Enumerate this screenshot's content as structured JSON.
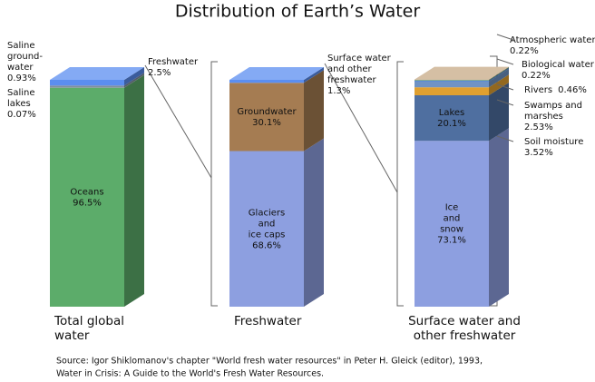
{
  "chart_data": {
    "type": "stacked-bar-3d",
    "title": "Distribution of Earth’s Water",
    "source": [
      "Source: Igor Shiklomanov's chapter \"World fresh water resources\" in Peter H. Gleick (editor), 1993,",
      "Water in Crisis: A Guide to the World's Fresh Water Resources."
    ],
    "ylim": [
      0,
      100
    ],
    "bars": [
      {
        "label": [
          "Total global",
          "water"
        ],
        "segments": [
          {
            "name": [
              "Oceans"
            ],
            "value": 96.5,
            "value_label": "96.5%",
            "color": "#5cac6a",
            "label_side": "inside"
          },
          {
            "name": [
              "Saline",
              "lakes"
            ],
            "value": 0.07,
            "value_label": "0.07%",
            "color": "#8a9a8a",
            "label_side": "left"
          },
          {
            "name": [
              "Saline",
              "ground-",
              "water"
            ],
            "value": 0.93,
            "value_label": "0.93%",
            "color": "#7f8fa0",
            "label_side": "left"
          },
          {
            "name": [
              "Freshwater"
            ],
            "value": 2.5,
            "value_label": "2.5%",
            "color": "#5b8ef0",
            "label_side": "right"
          }
        ]
      },
      {
        "label": [
          "Freshwater"
        ],
        "segments": [
          {
            "name": [
              "Glaciers",
              "and",
              "ice caps"
            ],
            "value": 68.6,
            "value_label": "68.6%",
            "color": "#8d9fe0",
            "label_side": "inside"
          },
          {
            "name": [
              "Groundwater"
            ],
            "value": 30.1,
            "value_label": "30.1%",
            "color": "#a57c52",
            "label_side": "inside"
          },
          {
            "name": [
              "Surface water",
              "and other",
              "freshwater"
            ],
            "value": 1.3,
            "value_label": "1.3%",
            "color": "#5b8ef0",
            "label_side": "right"
          }
        ]
      },
      {
        "label": [
          "Surface water and",
          "other freshwater"
        ],
        "segments": [
          {
            "name": [
              "Ice",
              "and",
              "snow"
            ],
            "value": 73.1,
            "value_label": "73.1%",
            "color": "#8d9fe0",
            "label_side": "inside"
          },
          {
            "name": [
              "Lakes"
            ],
            "value": 20.1,
            "value_label": "20.1%",
            "color": "#4f6fa0",
            "label_side": "inside"
          },
          {
            "name": [
              "Soil moisture"
            ],
            "value": 3.52,
            "value_label": "3.52%",
            "color": "#e0a030",
            "label_side": "right"
          },
          {
            "name": [
              "Swamps and",
              "marshes"
            ],
            "value": 2.53,
            "value_label": "2.53%",
            "color": "#6f93c4",
            "label_side": "right"
          },
          {
            "name": [
              "Rivers"
            ],
            "value": 0.46,
            "value_label": "0.46%",
            "color": "#4a7fd0",
            "label_side": "right",
            "value_inline": true
          },
          {
            "name": [
              "Biological water"
            ],
            "value": 0.22,
            "value_label": "0.22%",
            "color": "#3a8a4a",
            "label_side": "right"
          },
          {
            "name": [
              "Atmospheric water"
            ],
            "value": 0.22,
            "value_label": "0.22%",
            "color": "#c7aa86",
            "label_side": "right"
          }
        ]
      }
    ]
  }
}
